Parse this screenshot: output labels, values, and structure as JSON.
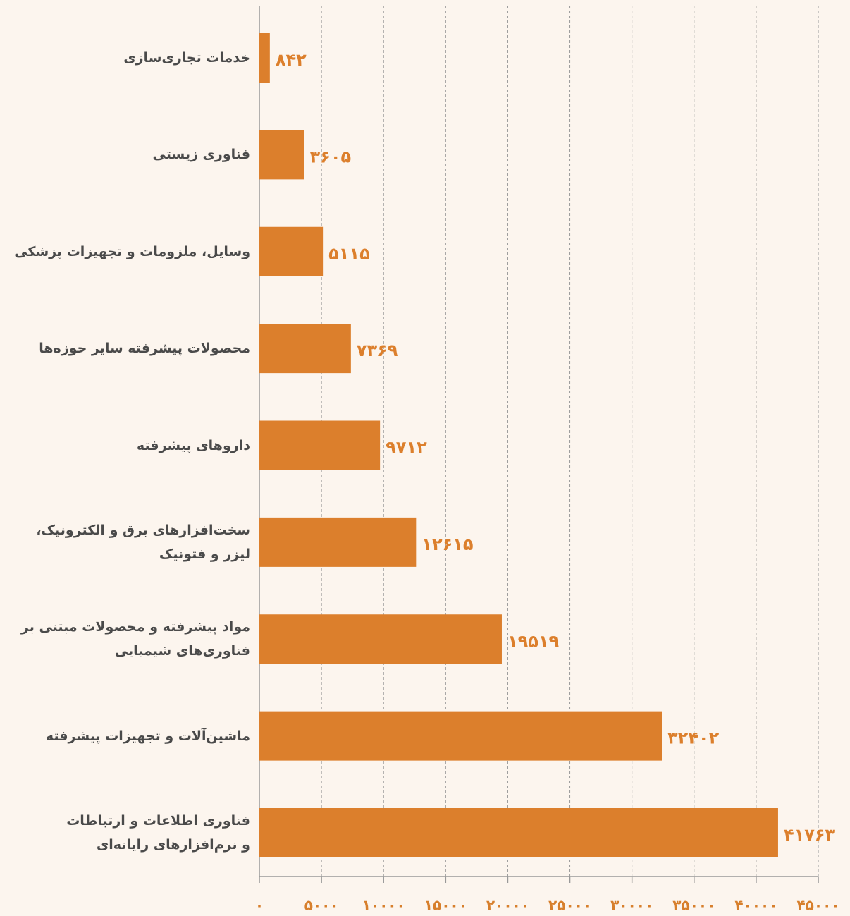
{
  "chart_data": {
    "type": "barh",
    "categories": [
      "خدمات تجاری‌سازی",
      "فناوری زیستی",
      "وسایل، ملزومات و تجهیزات پزشکی",
      "محصولات پیشرفته سایر حوزه‌ها",
      "داروهای پیشرفته",
      "سخت‌افزارهای برق و الکترونیک،\nلیزر و فتونیک",
      "مواد پیشرفته و محصولات مبتنی بر\nفناوری‌های شیمیایی",
      "ماشین‌آلات و تجهیزات پیشرفته",
      "فناوری اطلاعات و ارتباطات\nو نرم‌افزارهای رایانه‌ای"
    ],
    "values": [
      842,
      3605,
      5115,
      7369,
      9712,
      12615,
      19519,
      32402,
      41763
    ],
    "value_labels": [
      "۸۴۲",
      "۳۶۰۵",
      "۵۱۱۵",
      "۷۳۶۹",
      "۹۷۱۲",
      "۱۲۶۱۵",
      "۱۹۵۱۹",
      "۳۲۴۰۲",
      "۴۱۷۶۳"
    ],
    "color": "#dc7f2c",
    "xlim": [
      0,
      45000
    ],
    "xticks": [
      {
        "value": 0,
        "label": "۰"
      },
      {
        "value": 5000,
        "label": "۵۰۰۰"
      },
      {
        "value": 10000,
        "label": "۱۰۰۰۰"
      },
      {
        "value": 15000,
        "label": "۱۵۰۰۰"
      },
      {
        "value": 20000,
        "label": "۲۰۰۰۰"
      },
      {
        "value": 25000,
        "label": "۲۵۰۰۰"
      },
      {
        "value": 30000,
        "label": "۳۰۰۰۰"
      },
      {
        "value": 35000,
        "label": "۳۵۰۰۰"
      },
      {
        "value": 40000,
        "label": "۴۰۰۰۰"
      },
      {
        "value": 45000,
        "label": "۴۵۰۰۰"
      }
    ],
    "grid": true
  }
}
